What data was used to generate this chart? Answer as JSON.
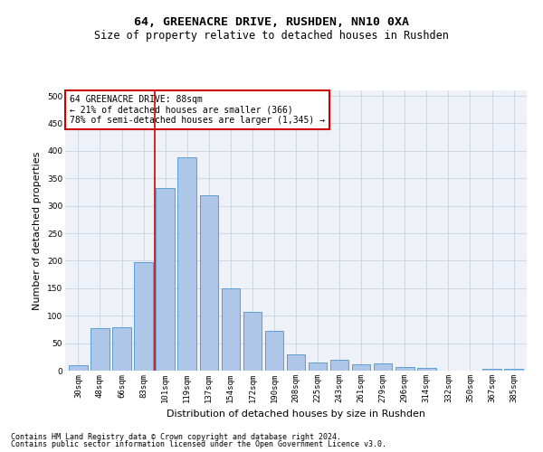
{
  "title": "64, GREENACRE DRIVE, RUSHDEN, NN10 0XA",
  "subtitle": "Size of property relative to detached houses in Rushden",
  "xlabel": "Distribution of detached houses by size in Rushden",
  "ylabel": "Number of detached properties",
  "categories": [
    "30sqm",
    "48sqm",
    "66sqm",
    "83sqm",
    "101sqm",
    "119sqm",
    "137sqm",
    "154sqm",
    "172sqm",
    "190sqm",
    "208sqm",
    "225sqm",
    "243sqm",
    "261sqm",
    "279sqm",
    "296sqm",
    "314sqm",
    "332sqm",
    "350sqm",
    "367sqm",
    "385sqm"
  ],
  "values": [
    10,
    78,
    79,
    198,
    332,
    388,
    319,
    150,
    107,
    73,
    30,
    15,
    20,
    12,
    13,
    6,
    5,
    0,
    0,
    4,
    4
  ],
  "bar_color": "#aec6e8",
  "bar_edge_color": "#5a9fd4",
  "vline_x": 3.5,
  "vline_color": "#cc0000",
  "annotation_text": "64 GREENACRE DRIVE: 88sqm\n← 21% of detached houses are smaller (366)\n78% of semi-detached houses are larger (1,345) →",
  "annotation_box_color": "#ffffff",
  "annotation_box_edge_color": "#cc0000",
  "ylim": [
    0,
    510
  ],
  "yticks": [
    0,
    50,
    100,
    150,
    200,
    250,
    300,
    350,
    400,
    450,
    500
  ],
  "grid_color": "#d0d8e8",
  "bg_color": "#eef2f8",
  "footer_line1": "Contains HM Land Registry data © Crown copyright and database right 2024.",
  "footer_line2": "Contains public sector information licensed under the Open Government Licence v3.0.",
  "title_fontsize": 9.5,
  "subtitle_fontsize": 8.5,
  "xlabel_fontsize": 8,
  "ylabel_fontsize": 8,
  "tick_fontsize": 6.5,
  "annotation_fontsize": 7,
  "footer_fontsize": 6
}
